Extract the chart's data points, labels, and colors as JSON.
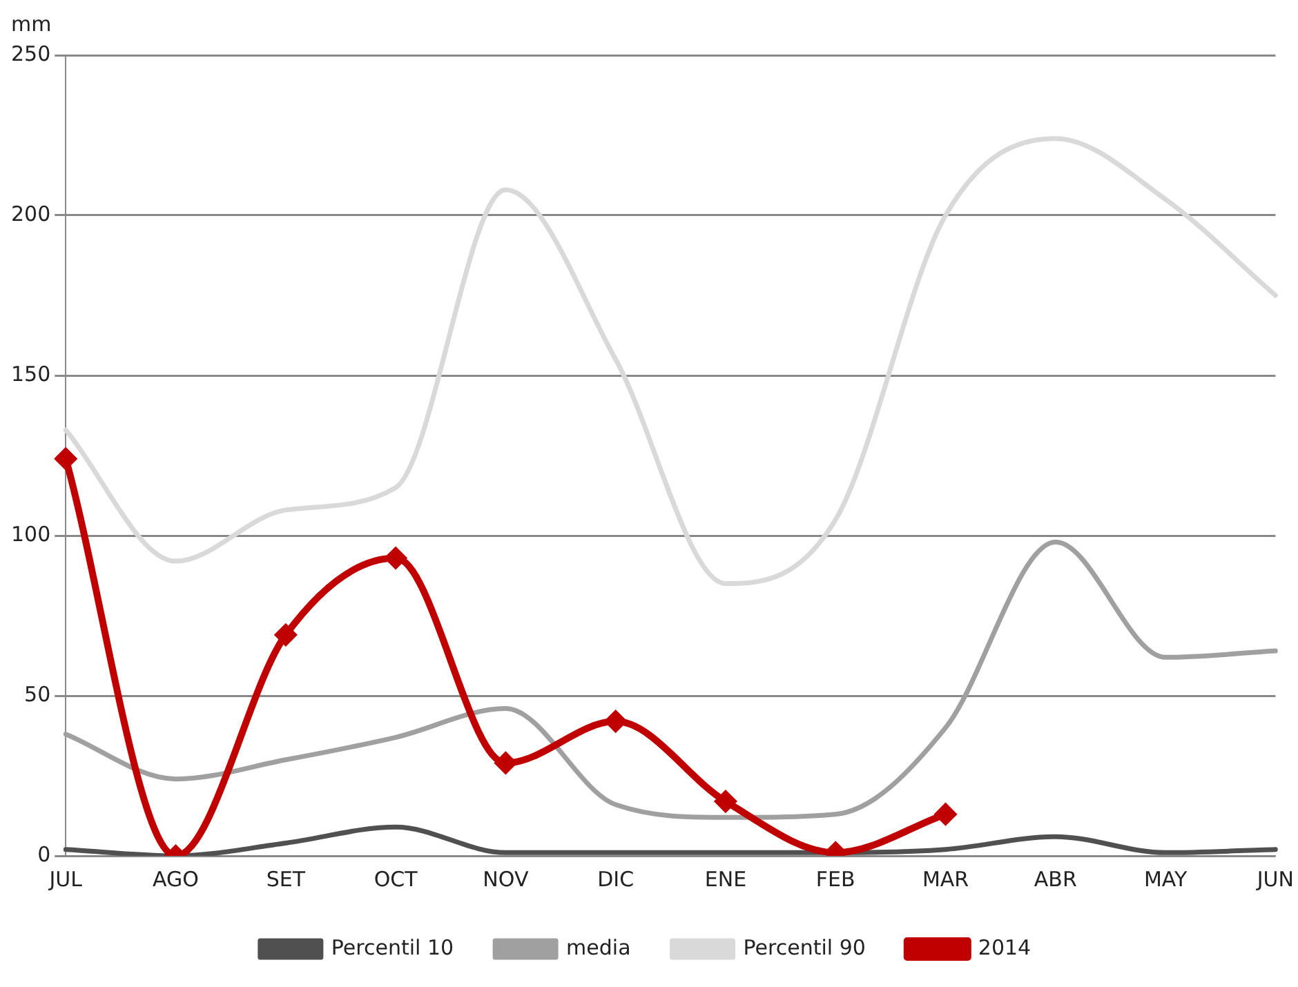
{
  "chart_data": {
    "type": "line",
    "ylabel": "mm",
    "categories": [
      "JUL",
      "AGO",
      "SET",
      "OCT",
      "NOV",
      "DIC",
      "ENE",
      "FEB",
      "MAR",
      "ABR",
      "MAY",
      "JUN"
    ],
    "ylim": [
      0,
      250
    ],
    "yticks": [
      0,
      50,
      100,
      150,
      200,
      250
    ],
    "grid": "y",
    "legend": "bottom",
    "series": [
      {
        "name": "Percentil 10",
        "color": "#505050",
        "marker": "none",
        "values": [
          2,
          0,
          4,
          9,
          1,
          1,
          1,
          1,
          2,
          6,
          1,
          2
        ]
      },
      {
        "name": "media",
        "color": "#a0a0a0",
        "marker": "none",
        "values": [
          38,
          24,
          30,
          37,
          46,
          16,
          12,
          13,
          40,
          98,
          62,
          64
        ]
      },
      {
        "name": "Percentil 90",
        "color": "#d9d9d9",
        "marker": "none",
        "values": [
          133,
          92,
          108,
          115,
          208,
          155,
          85,
          105,
          200,
          224,
          205,
          175
        ]
      },
      {
        "name": "2014",
        "color": "#c00000",
        "marker": "diamond",
        "values": [
          124,
          0,
          69,
          93,
          29,
          42,
          17,
          1,
          13,
          null,
          null,
          null
        ]
      }
    ]
  }
}
